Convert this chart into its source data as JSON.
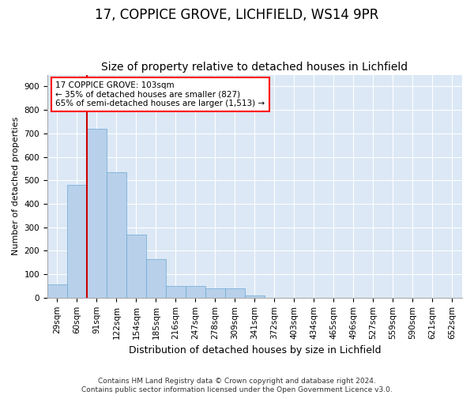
{
  "title1": "17, COPPICE GROVE, LICHFIELD, WS14 9PR",
  "title2": "Size of property relative to detached houses in Lichfield",
  "xlabel": "Distribution of detached houses by size in Lichfield",
  "ylabel": "Number of detached properties",
  "footnote": "Contains HM Land Registry data © Crown copyright and database right 2024.\nContains public sector information licensed under the Open Government Licence v3.0.",
  "bin_labels": [
    "29sqm",
    "60sqm",
    "91sqm",
    "122sqm",
    "154sqm",
    "185sqm",
    "216sqm",
    "247sqm",
    "278sqm",
    "309sqm",
    "341sqm",
    "372sqm",
    "403sqm",
    "434sqm",
    "465sqm",
    "496sqm",
    "527sqm",
    "559sqm",
    "590sqm",
    "621sqm",
    "652sqm"
  ],
  "bar_heights": [
    55,
    480,
    720,
    535,
    270,
    165,
    50,
    50,
    40,
    40,
    10,
    0,
    0,
    0,
    0,
    0,
    0,
    0,
    0,
    0,
    0
  ],
  "bar_color": "#b8d0ea",
  "bar_edge_color": "#6aaad4",
  "red_line_bin": 2,
  "red_line_color": "#cc0000",
  "annotation_text": "17 COPPICE GROVE: 103sqm\n← 35% of detached houses are smaller (827)\n65% of semi-detached houses are larger (1,513) →",
  "ylim": [
    0,
    950
  ],
  "yticks": [
    0,
    100,
    200,
    300,
    400,
    500,
    600,
    700,
    800,
    900
  ],
  "plot_bg_color": "#dce8f5",
  "grid_color": "#ffffff",
  "title1_fontsize": 12,
  "title2_fontsize": 10,
  "ylabel_fontsize": 8,
  "xlabel_fontsize": 9,
  "tick_fontsize": 7.5,
  "footnote_fontsize": 6.5
}
